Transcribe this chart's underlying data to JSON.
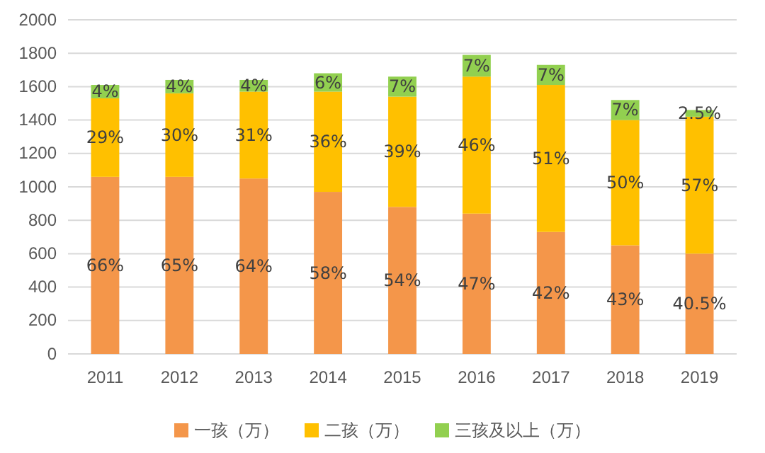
{
  "chart_data": {
    "type": "bar",
    "stacked": true,
    "categories": [
      "2011",
      "2012",
      "2013",
      "2014",
      "2015",
      "2016",
      "2017",
      "2018",
      "2019"
    ],
    "series": [
      {
        "name": "一孩（万）",
        "color": "#f4964a",
        "values": [
          1060,
          1060,
          1050,
          970,
          880,
          840,
          730,
          650,
          600
        ]
      },
      {
        "name": "二孩（万）",
        "color": "#ffc000",
        "values": [
          470,
          500,
          520,
          600,
          660,
          820,
          880,
          750,
          820
        ]
      },
      {
        "name": "三孩及以上（万）",
        "color": "#92d050",
        "values": [
          80,
          80,
          70,
          110,
          120,
          130,
          120,
          120,
          40
        ]
      }
    ],
    "annotations": [
      "66%",
      "65%",
      "64%",
      "58%",
      "54%",
      "47%",
      "42%",
      "43%",
      "40.5%",
      "29%",
      "30%",
      "31%",
      "36%",
      "39%",
      "46%",
      "51%",
      "50%",
      "57%",
      "4%",
      "4%",
      "4%",
      "6%",
      "7%",
      "7%",
      "7%",
      "7%",
      "2.5%"
    ],
    "ylim": [
      0,
      2000
    ],
    "yticks": [
      0,
      200,
      400,
      600,
      800,
      1000,
      1200,
      1400,
      1600,
      1800,
      2000
    ],
    "grid": "y",
    "legend": "bottom"
  }
}
